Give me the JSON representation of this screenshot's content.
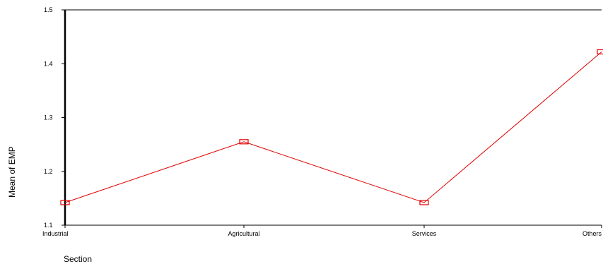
{
  "chart_data": {
    "type": "line",
    "categories": [
      "Industrial",
      "Agricultural",
      "Services",
      "Others"
    ],
    "series": [
      {
        "values": [
          1.142,
          1.255,
          1.142,
          1.422
        ],
        "color": "#e00000",
        "marker": "square"
      }
    ],
    "ylim": [
      1.1,
      1.5
    ],
    "yticks": [
      "1.1",
      "1.2",
      "1.3",
      "1.4",
      "1.5"
    ],
    "xlabel": "Section",
    "ylabel": "Mean of EMP",
    "grid": false,
    "legend": "none"
  }
}
